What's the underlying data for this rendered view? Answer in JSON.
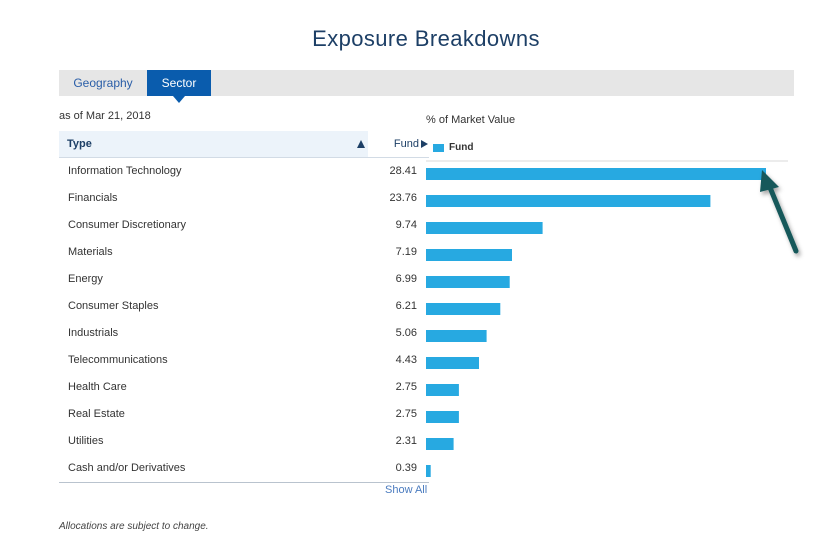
{
  "title": "Exposure Breakdowns",
  "tabs": [
    {
      "label": "Geography",
      "active": false
    },
    {
      "label": "Sector",
      "active": true
    }
  ],
  "as_of": "as of Mar 21, 2018",
  "table": {
    "col_type": "Type",
    "col_fund": "Fund",
    "rows": [
      {
        "type": "Information Technology",
        "value": "28.41"
      },
      {
        "type": "Financials",
        "value": "23.76"
      },
      {
        "type": "Consumer Discretionary",
        "value": "9.74"
      },
      {
        "type": "Materials",
        "value": "7.19"
      },
      {
        "type": "Energy",
        "value": "6.99"
      },
      {
        "type": "Consumer Staples",
        "value": "6.21"
      },
      {
        "type": "Industrials",
        "value": "5.06"
      },
      {
        "type": "Telecommunications",
        "value": "4.43"
      },
      {
        "type": "Health Care",
        "value": "2.75"
      },
      {
        "type": "Real Estate",
        "value": "2.75"
      },
      {
        "type": "Utilities",
        "value": "2.31"
      },
      {
        "type": "Cash and/or Derivatives",
        "value": "0.39"
      }
    ],
    "show_all": "Show All"
  },
  "chart_data": {
    "type": "bar",
    "orientation": "horizontal",
    "title": "% of Market Value",
    "categories": [
      "Information Technology",
      "Financials",
      "Consumer Discretionary",
      "Materials",
      "Energy",
      "Consumer Staples",
      "Industrials",
      "Telecommunications",
      "Health Care",
      "Real Estate",
      "Utilities",
      "Cash and/or Derivatives"
    ],
    "series": [
      {
        "name": "Fund",
        "values": [
          28.41,
          23.76,
          9.74,
          7.19,
          6.99,
          6.21,
          5.06,
          4.43,
          2.75,
          2.75,
          2.31,
          0.39
        ],
        "color": "#27a9e1"
      }
    ],
    "xlim": [
      0,
      28.41
    ],
    "grid": false,
    "legend": "top-left",
    "annotation": "arrow-pointing-to-largest-bar"
  },
  "colors": {
    "accent": "#0a5cad",
    "bar": "#27a9e1",
    "title": "#1d3f66",
    "arrow": "#14585a"
  },
  "footnote": "Allocations are subject to change."
}
